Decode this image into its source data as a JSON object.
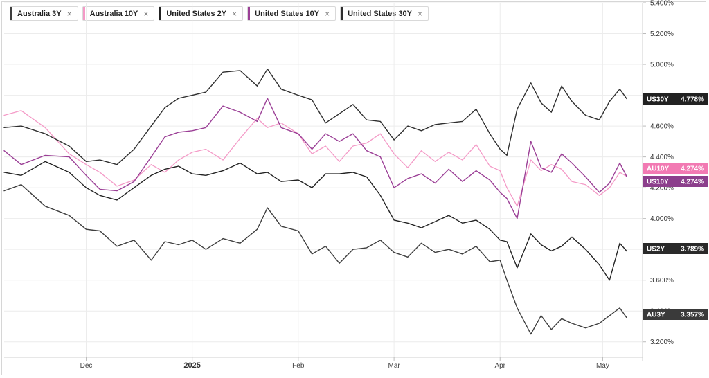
{
  "legend": [
    {
      "label": "Australia 3Y",
      "color": "#3f3f3f"
    },
    {
      "label": "Australia 10Y",
      "color": "#f49ac7"
    },
    {
      "label": "United States 2Y",
      "color": "#222222"
    },
    {
      "label": "United States 10Y",
      "color": "#9b3f96"
    },
    {
      "label": "United States 30Y",
      "color": "#2e2e2e"
    }
  ],
  "legend_close_glyph": "×",
  "chart_data": {
    "type": "line",
    "y_axis_position": "right",
    "ylim": [
      3.1,
      5.4
    ],
    "y_ticks": [
      "5.400%",
      "5.200%",
      "5.000%",
      "4.800%",
      "4.600%",
      "4.400%",
      "4.200%",
      "4.000%",
      "3.800%",
      "3.600%",
      "3.400%",
      "3.200%"
    ],
    "y_tick_values": [
      5.4,
      5.2,
      5.0,
      4.8,
      4.6,
      4.4,
      4.2,
      4.0,
      3.8,
      3.6,
      3.4,
      3.2
    ],
    "x_ticks": [
      {
        "label": "Dec",
        "date": "2024-12-01",
        "bold": false
      },
      {
        "label": "2025",
        "date": "2025-01-01",
        "bold": true
      },
      {
        "label": "Feb",
        "date": "2025-02-01",
        "bold": false
      },
      {
        "label": "Mar",
        "date": "2025-03-01",
        "bold": false
      },
      {
        "label": "Apr",
        "date": "2025-04-01",
        "bold": false
      },
      {
        "label": "May",
        "date": "2025-05-01",
        "bold": false
      }
    ],
    "x_range": [
      "2024-11-07",
      "2025-05-08"
    ],
    "grid": true,
    "series": [
      {
        "name": "Australia 3Y",
        "color": "#3f3f3f",
        "badge": "AU3Y",
        "last_label": "3.357%",
        "badge_color": "#3a3a3a",
        "points": [
          [
            "2024-11-07",
            4.18
          ],
          [
            "2024-11-12",
            4.22
          ],
          [
            "2024-11-19",
            4.08
          ],
          [
            "2024-11-26",
            4.02
          ],
          [
            "2024-12-01",
            3.93
          ],
          [
            "2024-12-05",
            3.92
          ],
          [
            "2024-12-10",
            3.82
          ],
          [
            "2024-12-15",
            3.86
          ],
          [
            "2024-12-20",
            3.73
          ],
          [
            "2024-12-24",
            3.85
          ],
          [
            "2024-12-28",
            3.83
          ],
          [
            "2025-01-01",
            3.86
          ],
          [
            "2025-01-05",
            3.8
          ],
          [
            "2025-01-10",
            3.87
          ],
          [
            "2025-01-15",
            3.84
          ],
          [
            "2025-01-20",
            3.93
          ],
          [
            "2025-01-23",
            4.07
          ],
          [
            "2025-01-27",
            3.95
          ],
          [
            "2025-02-01",
            3.92
          ],
          [
            "2025-02-05",
            3.77
          ],
          [
            "2025-02-09",
            3.82
          ],
          [
            "2025-02-13",
            3.71
          ],
          [
            "2025-02-17",
            3.8
          ],
          [
            "2025-02-21",
            3.81
          ],
          [
            "2025-02-25",
            3.86
          ],
          [
            "2025-03-01",
            3.78
          ],
          [
            "2025-03-05",
            3.75
          ],
          [
            "2025-03-09",
            3.84
          ],
          [
            "2025-03-13",
            3.78
          ],
          [
            "2025-03-17",
            3.8
          ],
          [
            "2025-03-21",
            3.77
          ],
          [
            "2025-03-25",
            3.82
          ],
          [
            "2025-03-29",
            3.72
          ],
          [
            "2025-04-01",
            3.73
          ],
          [
            "2025-04-03",
            3.6
          ],
          [
            "2025-04-06",
            3.42
          ],
          [
            "2025-04-10",
            3.25
          ],
          [
            "2025-04-13",
            3.37
          ],
          [
            "2025-04-16",
            3.28
          ],
          [
            "2025-04-19",
            3.35
          ],
          [
            "2025-04-22",
            3.32
          ],
          [
            "2025-04-26",
            3.29
          ],
          [
            "2025-04-30",
            3.32
          ],
          [
            "2025-05-03",
            3.37
          ],
          [
            "2025-05-06",
            3.42
          ],
          [
            "2025-05-08",
            3.357
          ]
        ]
      },
      {
        "name": "Australia 10Y",
        "color": "#f49ac7",
        "badge": "AU10Y",
        "last_label": "4.274%",
        "badge_color": "#f27ab3",
        "points": [
          [
            "2024-11-07",
            4.67
          ],
          [
            "2024-11-12",
            4.7
          ],
          [
            "2024-11-19",
            4.59
          ],
          [
            "2024-11-26",
            4.42
          ],
          [
            "2024-12-01",
            4.35
          ],
          [
            "2024-12-05",
            4.3
          ],
          [
            "2024-12-10",
            4.21
          ],
          [
            "2024-12-15",
            4.25
          ],
          [
            "2024-12-20",
            4.35
          ],
          [
            "2024-12-24",
            4.3
          ],
          [
            "2024-12-28",
            4.38
          ],
          [
            "2025-01-01",
            4.43
          ],
          [
            "2025-01-05",
            4.45
          ],
          [
            "2025-01-10",
            4.38
          ],
          [
            "2025-01-15",
            4.52
          ],
          [
            "2025-01-20",
            4.65
          ],
          [
            "2025-01-23",
            4.59
          ],
          [
            "2025-01-27",
            4.62
          ],
          [
            "2025-02-01",
            4.55
          ],
          [
            "2025-02-05",
            4.42
          ],
          [
            "2025-02-09",
            4.47
          ],
          [
            "2025-02-13",
            4.37
          ],
          [
            "2025-02-17",
            4.47
          ],
          [
            "2025-02-21",
            4.49
          ],
          [
            "2025-02-25",
            4.55
          ],
          [
            "2025-03-01",
            4.42
          ],
          [
            "2025-03-05",
            4.33
          ],
          [
            "2025-03-09",
            4.44
          ],
          [
            "2025-03-13",
            4.37
          ],
          [
            "2025-03-17",
            4.43
          ],
          [
            "2025-03-21",
            4.38
          ],
          [
            "2025-03-25",
            4.48
          ],
          [
            "2025-03-29",
            4.34
          ],
          [
            "2025-04-01",
            4.31
          ],
          [
            "2025-04-03",
            4.2
          ],
          [
            "2025-04-06",
            4.08
          ],
          [
            "2025-04-10",
            4.38
          ],
          [
            "2025-04-13",
            4.31
          ],
          [
            "2025-04-16",
            4.35
          ],
          [
            "2025-04-19",
            4.32
          ],
          [
            "2025-04-22",
            4.24
          ],
          [
            "2025-04-26",
            4.22
          ],
          [
            "2025-04-30",
            4.15
          ],
          [
            "2025-05-03",
            4.2
          ],
          [
            "2025-05-06",
            4.3
          ],
          [
            "2025-05-08",
            4.274
          ]
        ]
      },
      {
        "name": "United States 2Y",
        "color": "#222222",
        "badge": "US2Y",
        "last_label": "3.789%",
        "badge_color": "#2a2a2a",
        "points": [
          [
            "2024-11-07",
            4.3
          ],
          [
            "2024-11-12",
            4.28
          ],
          [
            "2024-11-19",
            4.37
          ],
          [
            "2024-11-26",
            4.3
          ],
          [
            "2024-12-01",
            4.2
          ],
          [
            "2024-12-05",
            4.15
          ],
          [
            "2024-12-10",
            4.12
          ],
          [
            "2024-12-15",
            4.2
          ],
          [
            "2024-12-20",
            4.28
          ],
          [
            "2024-12-24",
            4.32
          ],
          [
            "2024-12-28",
            4.34
          ],
          [
            "2025-01-01",
            4.29
          ],
          [
            "2025-01-05",
            4.28
          ],
          [
            "2025-01-10",
            4.31
          ],
          [
            "2025-01-15",
            4.36
          ],
          [
            "2025-01-20",
            4.29
          ],
          [
            "2025-01-23",
            4.3
          ],
          [
            "2025-01-27",
            4.24
          ],
          [
            "2025-02-01",
            4.25
          ],
          [
            "2025-02-05",
            4.2
          ],
          [
            "2025-02-09",
            4.29
          ],
          [
            "2025-02-13",
            4.29
          ],
          [
            "2025-02-17",
            4.3
          ],
          [
            "2025-02-21",
            4.27
          ],
          [
            "2025-02-25",
            4.15
          ],
          [
            "2025-03-01",
            3.99
          ],
          [
            "2025-03-05",
            3.97
          ],
          [
            "2025-03-09",
            3.94
          ],
          [
            "2025-03-13",
            3.98
          ],
          [
            "2025-03-17",
            4.02
          ],
          [
            "2025-03-21",
            3.97
          ],
          [
            "2025-03-25",
            3.99
          ],
          [
            "2025-03-29",
            3.93
          ],
          [
            "2025-04-01",
            3.86
          ],
          [
            "2025-04-03",
            3.85
          ],
          [
            "2025-04-06",
            3.68
          ],
          [
            "2025-04-10",
            3.9
          ],
          [
            "2025-04-13",
            3.83
          ],
          [
            "2025-04-16",
            3.79
          ],
          [
            "2025-04-19",
            3.82
          ],
          [
            "2025-04-22",
            3.88
          ],
          [
            "2025-04-26",
            3.8
          ],
          [
            "2025-04-30",
            3.7
          ],
          [
            "2025-05-03",
            3.6
          ],
          [
            "2025-05-06",
            3.84
          ],
          [
            "2025-05-08",
            3.789
          ]
        ]
      },
      {
        "name": "United States 10Y",
        "color": "#9b3f96",
        "badge": "US10Y",
        "last_label": "4.274%",
        "badge_color": "#8c3f8c",
        "points": [
          [
            "2024-11-07",
            4.44
          ],
          [
            "2024-11-12",
            4.35
          ],
          [
            "2024-11-19",
            4.41
          ],
          [
            "2024-11-26",
            4.4
          ],
          [
            "2024-12-01",
            4.28
          ],
          [
            "2024-12-05",
            4.19
          ],
          [
            "2024-12-10",
            4.18
          ],
          [
            "2024-12-15",
            4.24
          ],
          [
            "2024-12-20",
            4.4
          ],
          [
            "2024-12-24",
            4.53
          ],
          [
            "2024-12-28",
            4.56
          ],
          [
            "2025-01-01",
            4.57
          ],
          [
            "2025-01-05",
            4.59
          ],
          [
            "2025-01-10",
            4.73
          ],
          [
            "2025-01-15",
            4.69
          ],
          [
            "2025-01-20",
            4.63
          ],
          [
            "2025-01-23",
            4.78
          ],
          [
            "2025-01-27",
            4.59
          ],
          [
            "2025-02-01",
            4.55
          ],
          [
            "2025-02-05",
            4.45
          ],
          [
            "2025-02-09",
            4.55
          ],
          [
            "2025-02-13",
            4.5
          ],
          [
            "2025-02-17",
            4.55
          ],
          [
            "2025-02-21",
            4.44
          ],
          [
            "2025-02-25",
            4.4
          ],
          [
            "2025-03-01",
            4.2
          ],
          [
            "2025-03-05",
            4.26
          ],
          [
            "2025-03-09",
            4.29
          ],
          [
            "2025-03-13",
            4.23
          ],
          [
            "2025-03-17",
            4.32
          ],
          [
            "2025-03-21",
            4.24
          ],
          [
            "2025-03-25",
            4.31
          ],
          [
            "2025-03-29",
            4.25
          ],
          [
            "2025-04-01",
            4.17
          ],
          [
            "2025-04-03",
            4.13
          ],
          [
            "2025-04-06",
            4.0
          ],
          [
            "2025-04-10",
            4.5
          ],
          [
            "2025-04-13",
            4.33
          ],
          [
            "2025-04-16",
            4.3
          ],
          [
            "2025-04-19",
            4.42
          ],
          [
            "2025-04-22",
            4.36
          ],
          [
            "2025-04-26",
            4.27
          ],
          [
            "2025-04-30",
            4.17
          ],
          [
            "2025-05-03",
            4.23
          ],
          [
            "2025-05-06",
            4.36
          ],
          [
            "2025-05-08",
            4.274
          ]
        ]
      },
      {
        "name": "United States 30Y",
        "color": "#2e2e2e",
        "badge": "US30Y",
        "last_label": "4.778%",
        "badge_color": "#222222",
        "points": [
          [
            "2024-11-07",
            4.59
          ],
          [
            "2024-11-12",
            4.6
          ],
          [
            "2024-11-19",
            4.55
          ],
          [
            "2024-11-26",
            4.47
          ],
          [
            "2024-12-01",
            4.37
          ],
          [
            "2024-12-05",
            4.38
          ],
          [
            "2024-12-10",
            4.35
          ],
          [
            "2024-12-15",
            4.45
          ],
          [
            "2024-12-20",
            4.6
          ],
          [
            "2024-12-24",
            4.72
          ],
          [
            "2024-12-28",
            4.78
          ],
          [
            "2025-01-01",
            4.8
          ],
          [
            "2025-01-05",
            4.82
          ],
          [
            "2025-01-10",
            4.95
          ],
          [
            "2025-01-15",
            4.96
          ],
          [
            "2025-01-20",
            4.86
          ],
          [
            "2025-01-23",
            4.97
          ],
          [
            "2025-01-27",
            4.84
          ],
          [
            "2025-02-01",
            4.8
          ],
          [
            "2025-02-05",
            4.77
          ],
          [
            "2025-02-09",
            4.62
          ],
          [
            "2025-02-13",
            4.68
          ],
          [
            "2025-02-17",
            4.74
          ],
          [
            "2025-02-21",
            4.64
          ],
          [
            "2025-02-25",
            4.63
          ],
          [
            "2025-03-01",
            4.51
          ],
          [
            "2025-03-05",
            4.6
          ],
          [
            "2025-03-09",
            4.57
          ],
          [
            "2025-03-13",
            4.61
          ],
          [
            "2025-03-17",
            4.62
          ],
          [
            "2025-03-21",
            4.63
          ],
          [
            "2025-03-25",
            4.71
          ],
          [
            "2025-03-29",
            4.55
          ],
          [
            "2025-04-01",
            4.45
          ],
          [
            "2025-04-03",
            4.41
          ],
          [
            "2025-04-06",
            4.71
          ],
          [
            "2025-04-10",
            4.88
          ],
          [
            "2025-04-13",
            4.75
          ],
          [
            "2025-04-16",
            4.69
          ],
          [
            "2025-04-19",
            4.86
          ],
          [
            "2025-04-22",
            4.76
          ],
          [
            "2025-04-26",
            4.67
          ],
          [
            "2025-04-30",
            4.64
          ],
          [
            "2025-05-03",
            4.76
          ],
          [
            "2025-05-06",
            4.84
          ],
          [
            "2025-05-08",
            4.778
          ]
        ]
      }
    ]
  }
}
